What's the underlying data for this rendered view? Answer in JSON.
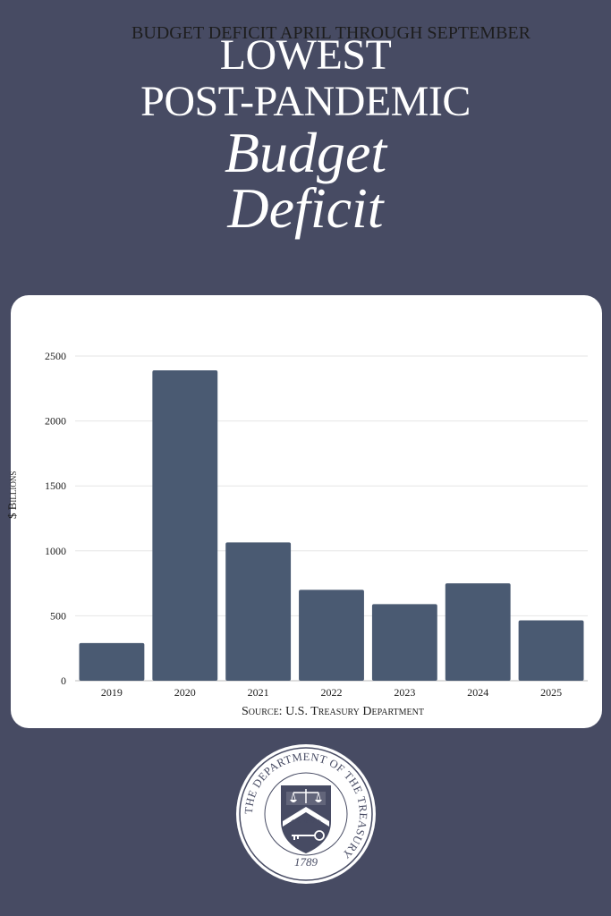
{
  "headline": {
    "line1": "LOWEST",
    "line2": "POST-PANDEMIC",
    "line3": "Budget",
    "line4": "Deficit"
  },
  "colors": {
    "background": "#474b63",
    "bar": "#4a5a72",
    "card": "#ffffff"
  },
  "chart_data": {
    "type": "bar",
    "title": "BUDGET DEFICIT APRIL THROUGH SEPTEMBER",
    "xlabel": "",
    "ylabel": "$ Billions",
    "categories": [
      "2019",
      "2020",
      "2021",
      "2022",
      "2023",
      "2024",
      "2025"
    ],
    "values": [
      290,
      2390,
      1065,
      700,
      590,
      750,
      465
    ],
    "ylim": [
      0,
      2500
    ],
    "yticks": [
      0,
      500,
      1000,
      1500,
      2000,
      2500
    ],
    "grid": true,
    "source": "Source: U.S. Treasury Department"
  },
  "seal": {
    "ring_text": "THE DEPARTMENT OF THE TREASURY",
    "year": "1789"
  }
}
